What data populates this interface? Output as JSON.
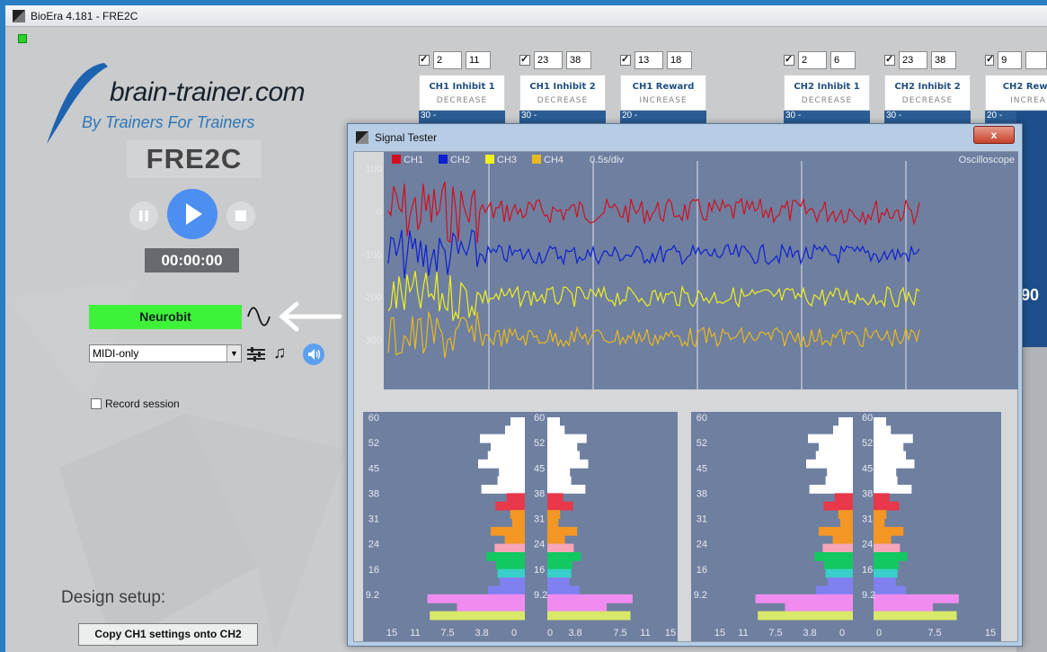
{
  "window": {
    "title": "BioEra 4.181 - FRE2C"
  },
  "logo": {
    "brand": "brain-trainer.com",
    "tagline": "By Trainers For Trainers"
  },
  "protocol": {
    "name": "FRE2C"
  },
  "player": {
    "timer": "00:00:00"
  },
  "device": {
    "label": "Neurobit"
  },
  "midi": {
    "selected": "MIDI-only"
  },
  "record": {
    "label": "Record session",
    "checked": false
  },
  "design": {
    "heading": "Design setup:",
    "copy_button": "Copy CH1 settings onto CH2"
  },
  "channels": [
    {
      "checked": true,
      "low": "2",
      "high": "11",
      "name": "CH1 Inhibit 1",
      "mode": "DECREASE",
      "scale": "30"
    },
    {
      "checked": true,
      "low": "23",
      "high": "38",
      "name": "CH1 Inhibit 2",
      "mode": "DECREASE",
      "scale": "30"
    },
    {
      "checked": true,
      "low": "13",
      "high": "18",
      "name": "CH1 Reward",
      "mode": "INCREASE",
      "scale": "20"
    },
    {
      "checked": true,
      "low": "2",
      "high": "6",
      "name": "CH2 Inhibit 1",
      "mode": "DECREASE",
      "scale": "30"
    },
    {
      "checked": true,
      "low": "23",
      "high": "38",
      "name": "CH2 Inhibit 2",
      "mode": "DECREASE",
      "scale": "30"
    },
    {
      "checked": true,
      "low": "9",
      "high": "",
      "name": "CH2 Rewa",
      "mode": "INCREA",
      "scale": "20"
    }
  ],
  "right_panel": {
    "value": "90"
  },
  "signal_tester": {
    "title": "Signal Tester",
    "close_label": "x",
    "oscilloscope": {
      "label": "Oscilloscope",
      "timebase": "0.5s/div",
      "channels": [
        {
          "name": "CH1",
          "color": "#d01020"
        },
        {
          "name": "CH2",
          "color": "#1020d0"
        },
        {
          "name": "CH3",
          "color": "#f0f020"
        },
        {
          "name": "CH4",
          "color": "#e8b820"
        }
      ],
      "y_ticks": [
        "100",
        "0",
        "-100",
        "-200",
        "-300"
      ]
    },
    "spectra": {
      "freq_ticks": [
        "60",
        "52",
        "45",
        "38",
        "31",
        "24",
        "16",
        "9.2"
      ],
      "left_axis_ticks": [
        "15",
        "11",
        "7.5",
        "3.8",
        "0"
      ],
      "right_axis_ticks": [
        "0",
        "3.8",
        "7.5",
        "11",
        "15"
      ],
      "right_axis_ticks_b": [
        "0",
        "7.5",
        "15"
      ]
    }
  }
}
